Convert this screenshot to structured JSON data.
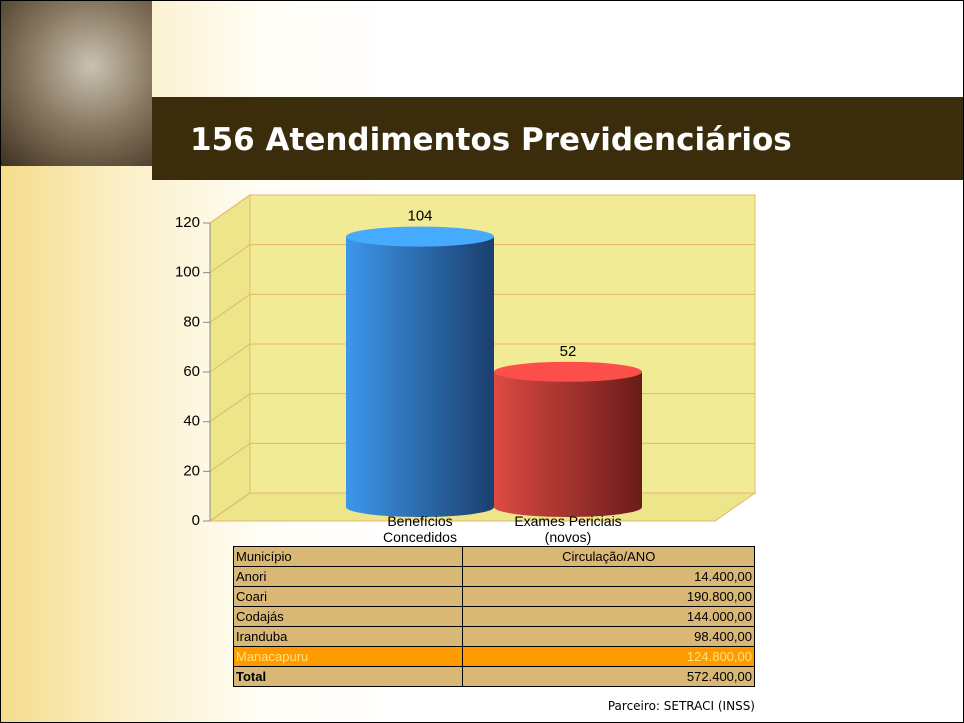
{
  "title": "156 Atendimentos Previdenciários",
  "chart_data": {
    "type": "bar",
    "categories": [
      "Benefícios Concedidos",
      "Exames Periciais (novos)"
    ],
    "values": [
      104,
      52
    ],
    "colors": [
      "#3a8ee0",
      "#d2423e"
    ],
    "ylim": [
      0,
      120
    ],
    "yticks": [
      0,
      20,
      40,
      60,
      80,
      100,
      120
    ],
    "grid": true
  },
  "table": {
    "header": [
      "Município",
      "Circulação/ANO"
    ],
    "rows": [
      [
        "Anori",
        "14.400,00"
      ],
      [
        "Coari",
        "190.800,00"
      ],
      [
        "Codajás",
        "144.000,00"
      ],
      [
        "Iranduba",
        "98.400,00"
      ],
      [
        "Manacapuru",
        "124.800,00"
      ],
      [
        "Total",
        "572.400,00"
      ]
    ]
  },
  "footer": "Parceiro: SETRACI (INSS)"
}
